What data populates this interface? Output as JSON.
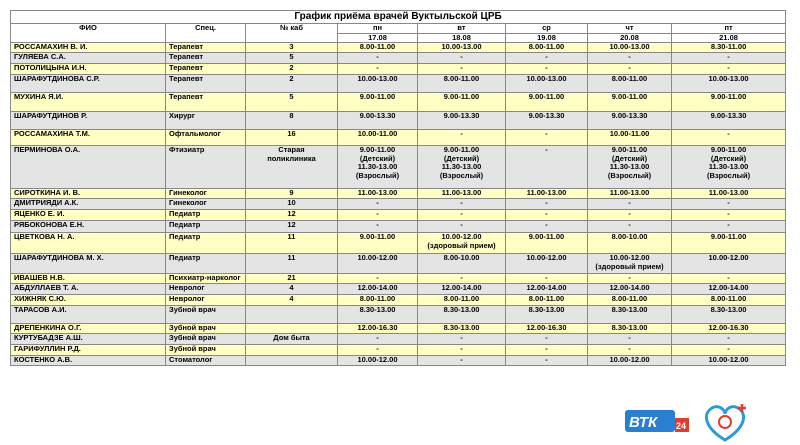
{
  "title": "График приёма врачей Вуктыльской ЦРБ",
  "header": {
    "name": "ФИО",
    "spec": "Спец.",
    "cabinet": "№ каб",
    "days": [
      {
        "day": "пн",
        "date": "17.08"
      },
      {
        "day": "вт",
        "date": "18.08"
      },
      {
        "day": "ср",
        "date": "19.08"
      },
      {
        "day": "чт",
        "date": "20.08"
      },
      {
        "day": "пт",
        "date": "21.08"
      }
    ]
  },
  "rows": [
    [
      "РОССАМАХИН В. И.",
      "Терапевт",
      "3",
      "8.00-11.00",
      "10.00-13.00",
      "8.00-11.00",
      "10.00-13.00",
      "8.30-11.00"
    ],
    [
      "ГУЛЯЕВА С.А.",
      "Терапевт",
      "5",
      "-",
      "-",
      "-",
      "-",
      "-"
    ],
    [
      "ПОТОЛИЦЫНА И.Н.",
      "Терапевт",
      "2",
      "-",
      "-",
      "-",
      "-",
      "-"
    ],
    [
      "ШАРАФУТДИНОВА С.Р.",
      "Терапевт",
      "2",
      "10.00-13.00",
      "8.00-11.00",
      "10.00-13.00",
      "8.00-11.00",
      "10.00-13.00"
    ],
    [
      "МУХИНА Я.И.",
      "Терапевт",
      "5",
      "9.00-11.00",
      "9.00-11.00",
      "9.00-11.00",
      "9.00-11.00",
      "9.00-11.00"
    ],
    [
      "ШАРАФУТДИНОВ Р.",
      "Хирург",
      "8",
      "9.00-13.30",
      "9.00-13.30",
      "9.00-13.30",
      "9.00-13.30",
      "9.00-13.30"
    ],
    [
      "РОССАМАХИНА Т.М.",
      "Офтальмолог",
      "16",
      "10.00-11.00",
      "-",
      "-",
      "10.00-11.00",
      "-"
    ],
    [
      "ПЕРМИНОВА О.А.",
      "Фтизиатр",
      "Старая\nполиклиника",
      "9.00-11.00\n(Детский)\n11.30-13.00\n(Взрослый)",
      "9.00-11.00\n(Детский)\n11.30-13.00\n(Взрослый)",
      "-",
      "9.00-11.00\n(Детский)\n11.30-13.00\n(Взрослый)",
      "9.00-11.00\n(Детский)\n11.30-13.00\n(Взрослый)"
    ],
    [
      "СИРОТКИНА И. В.",
      "Гинеколог",
      "9",
      "11.00-13.00",
      "11.00-13.00",
      "11.00-13.00",
      "11.00-13.00",
      "11.00-13.00"
    ],
    [
      "ДМИТРИЯДИ А.К.",
      "Гинеколог",
      "10",
      "-",
      "-",
      "-",
      "-",
      "-"
    ],
    [
      "ЯЦЕНКО Е. И.",
      "Педиатр",
      "12",
      "-",
      "-",
      "-",
      "-",
      "-"
    ],
    [
      "РЯБОКОНОВА Е.Н.",
      "Педиатр",
      "12",
      "-",
      "-",
      "-",
      "-",
      "-"
    ],
    [
      "ЦВЕТКОВА Н. А.",
      "Педиатр",
      "11",
      "9.00-11.00",
      "10.00-12.00\n(здоровый прием)",
      "9.00-11.00",
      "8.00-10.00",
      "9.00-11.00"
    ],
    [
      "ШАРАФУТДИНОВА М. Х.",
      "Педиатр",
      "11",
      "10.00-12.00",
      "8.00-10.00",
      "10.00-12.00",
      "10.00-12.00\n(здоровый прием)",
      "10.00-12.00"
    ],
    [
      "ИВАШЕВ Н.В.",
      "Психиатр-нарколог",
      "21",
      "-",
      "-",
      "-",
      "-",
      "-"
    ],
    [
      "АБДУЛЛАЕВ Т. А.",
      "Невролог",
      "4",
      "12.00-14.00",
      "12.00-14.00",
      "12.00-14.00",
      "12.00-14.00",
      "12.00-14.00"
    ],
    [
      "ХИЖНЯК С.Ю.",
      "Невролог",
      "4",
      "8.00-11.00",
      "8.00-11.00",
      "8.00-11.00",
      "8.00-11.00",
      "8.00-11.00"
    ],
    [
      "ТАРАСОВ А.И.",
      "Зубной врач",
      null,
      "8.30-13.00",
      "8.30-13.00",
      "8.30-13.00",
      "8.30-13.00",
      "8.30-13.00"
    ],
    [
      "ДРЕПЕНКИНА О.Г.",
      "Зубной врач",
      null,
      "12.00-16.30",
      "8.30-13.00",
      "12.00-16.30",
      "8.30-13.00",
      "12.00-16.30"
    ],
    [
      "КУРТУБАДЗЕ А.Ш.",
      "Зубной врач",
      "Дом быта",
      "-",
      "-",
      "-",
      "-",
      "-"
    ],
    [
      "ГАРИФУЛЛИН Р.Д.",
      "Зубной врач",
      null,
      "-",
      "-",
      "-",
      "-",
      "-"
    ],
    [
      "КОСТЕНКО А.В.",
      "Стоматолог",
      null,
      "10.00-12.00",
      "-",
      "-",
      "10.00-12.00",
      "10.00-12.00"
    ]
  ],
  "logo": {
    "brand": "ВТК",
    "number": "24"
  }
}
